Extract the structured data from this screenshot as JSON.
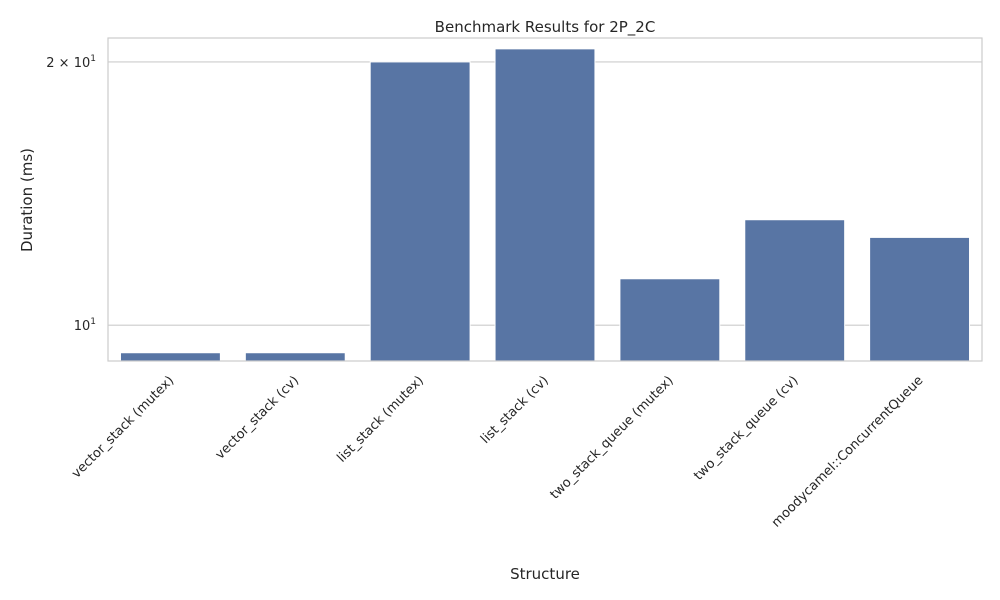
{
  "chart_data": {
    "type": "bar",
    "title": "Benchmark Results for 2P_2C",
    "xlabel": "Structure",
    "ylabel": "Duration (ms)",
    "y_scale": "log",
    "ylim": [
      9.1,
      21.3
    ],
    "yticks": [
      {
        "value": 10,
        "base": "10",
        "exp": "1"
      },
      {
        "value": 20,
        "base": "2 × 10",
        "exp": "1"
      }
    ],
    "categories": [
      "vector_stack (mutex)",
      "vector_stack (cv)",
      "list_stack (mutex)",
      "list_stack (cv)",
      "two_stack_queue (mutex)",
      "two_stack_queue (cv)",
      "moodycamel::ConcurrentQueue"
    ],
    "values": [
      9.3,
      9.3,
      20.0,
      20.7,
      11.3,
      13.2,
      12.6
    ],
    "grid": "horizontal",
    "bar_color": "#5875a4",
    "grid_color": "#cccccc",
    "frame_color": "#cccccc"
  }
}
